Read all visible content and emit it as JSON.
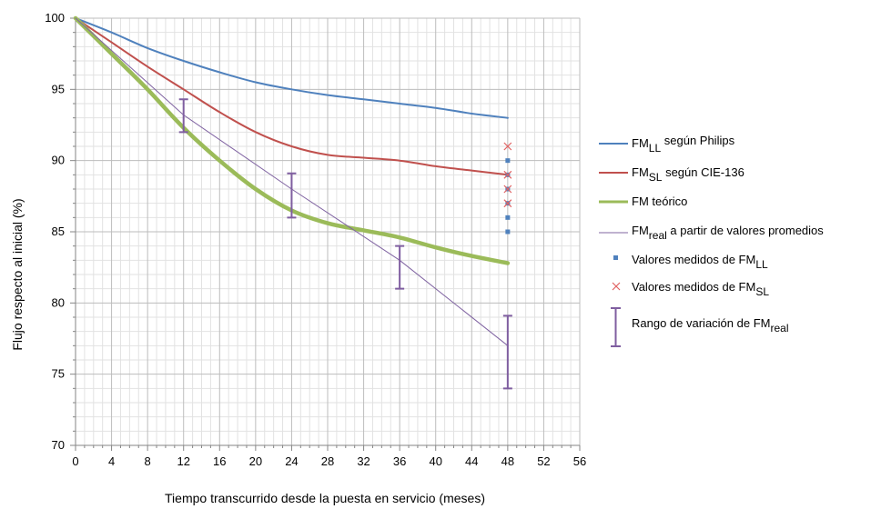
{
  "chart_data": {
    "type": "line",
    "title": "",
    "xlabel": "Tiempo transcurrido desde la puesta en servicio (meses)",
    "ylabel": "Flujo respecto al inicial (%)",
    "xlim": [
      0,
      56
    ],
    "ylim": [
      70,
      100
    ],
    "x_ticks": [
      "0",
      "4",
      "8",
      "12",
      "16",
      "20",
      "24",
      "28",
      "32",
      "36",
      "40",
      "44",
      "48",
      "52",
      "56"
    ],
    "y_ticks": [
      "70",
      "75",
      "80",
      "85",
      "90",
      "95",
      "100"
    ],
    "grid": true,
    "legend_position": "right",
    "series": [
      {
        "name": "FM_LL según Philips",
        "color": "#4f81bd",
        "x": [
          0,
          4,
          8,
          12,
          16,
          20,
          24,
          28,
          32,
          36,
          40,
          44,
          48
        ],
        "y": [
          100,
          99.0,
          97.9,
          97.0,
          96.2,
          95.5,
          95.0,
          94.6,
          94.3,
          94.0,
          93.7,
          93.3,
          93.0
        ]
      },
      {
        "name": "FM_SL según CIE-136",
        "color": "#c0504d",
        "x": [
          0,
          4,
          8,
          12,
          16,
          20,
          24,
          28,
          32,
          36,
          40,
          44,
          48
        ],
        "y": [
          100,
          98.3,
          96.6,
          95.0,
          93.4,
          92.0,
          91.0,
          90.4,
          90.2,
          90.0,
          89.6,
          89.3,
          89.0
        ]
      },
      {
        "name": "FM teórico",
        "color": "#9bbb59",
        "x": [
          0,
          4,
          8,
          12,
          16,
          20,
          24,
          28,
          32,
          36,
          40,
          44,
          48
        ],
        "y": [
          100,
          97.5,
          95.0,
          92.3,
          90.0,
          88.0,
          86.5,
          85.6,
          85.1,
          84.6,
          83.9,
          83.3,
          82.8
        ]
      },
      {
        "name": "FM_real a partir de valores promedios",
        "color": "#8064a2",
        "x": [
          0,
          12,
          24,
          36,
          48
        ],
        "y": [
          100,
          93.2,
          88.0,
          83.0,
          77.0
        ]
      }
    ],
    "measured_LL": {
      "name": "Valores medidos de FM_LL",
      "x": 48,
      "y": [
        90,
        89,
        88,
        87,
        86,
        85
      ]
    },
    "measured_SL": {
      "name": "Valores medidos de FM_SL",
      "x": 48,
      "y": [
        91,
        89,
        88,
        87
      ]
    },
    "error_bars": {
      "name": "Rango de variación de FM_real",
      "ranges": [
        {
          "x": 12,
          "low": 92.0,
          "high": 94.3
        },
        {
          "x": 24,
          "low": 86.0,
          "high": 89.1
        },
        {
          "x": 36,
          "low": 81.0,
          "high": 84.0
        },
        {
          "x": 48,
          "low": 74.0,
          "high": 79.1
        }
      ]
    }
  },
  "legend": {
    "ll": {
      "main": "FM",
      "sub": "LL",
      "suffix": " según Philips"
    },
    "sl": {
      "main": "FM",
      "sub": "SL",
      "suffix": " según CIE-136"
    },
    "teorico": {
      "text": "FM teórico"
    },
    "real": {
      "main": "FM",
      "sub": "real",
      "suffix": "  a partir de valores promedios"
    },
    "med_ll": {
      "prefix": "Valores medidos de  FM",
      "sub": "LL"
    },
    "med_sl": {
      "prefix": "Valores medidos de  FM",
      "sub": "SL"
    },
    "rango": {
      "prefix": "Rango de variación de FM",
      "sub": "real"
    }
  },
  "colors": {
    "ll": "#4f81bd",
    "sl": "#c0504d",
    "teorico": "#9bbb59",
    "real": "#8064a2",
    "errbar": "#7f5ea0"
  }
}
